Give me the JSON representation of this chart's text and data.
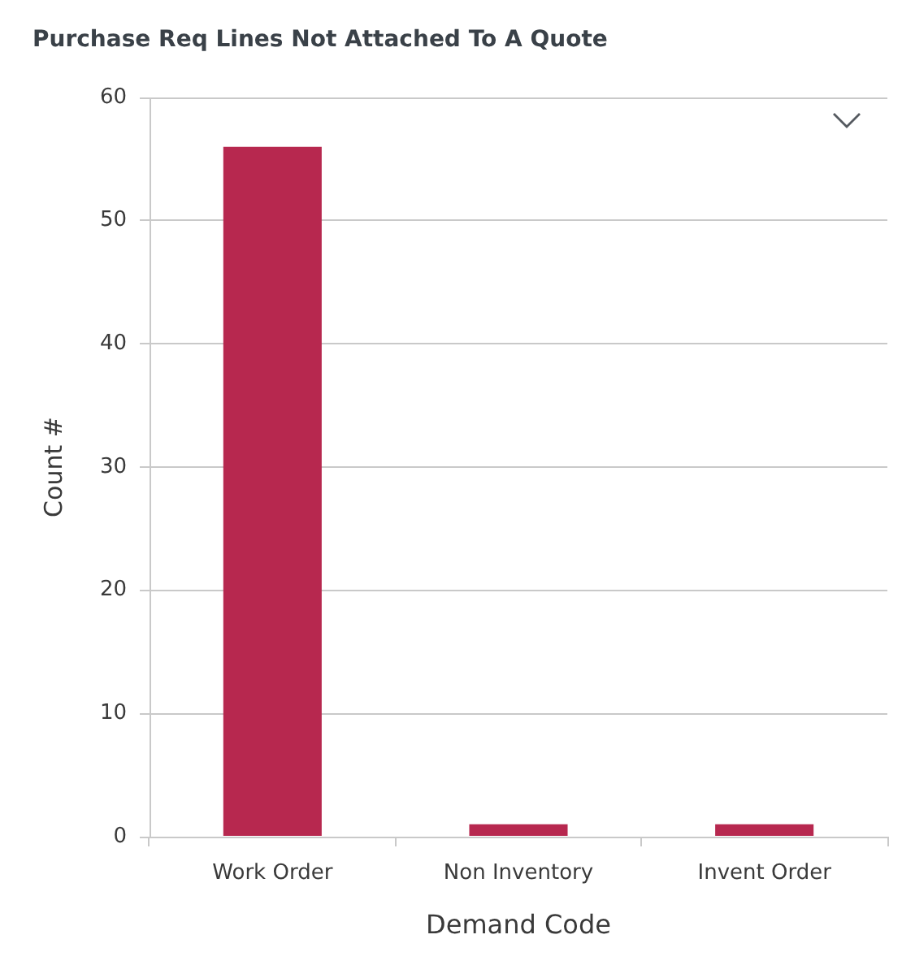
{
  "chart_data": {
    "type": "bar",
    "title": "Purchase Req Lines Not Attached To A Quote",
    "xlabel": "Demand Code",
    "ylabel": "Count #",
    "categories": [
      "Work Order",
      "Non Inventory",
      "Invent Order"
    ],
    "values": [
      56,
      1,
      1
    ],
    "color": "#b7284f",
    "ylim": [
      0,
      60
    ],
    "yticks": [
      0,
      10,
      20,
      30,
      40,
      50,
      60
    ],
    "grid": "y"
  }
}
